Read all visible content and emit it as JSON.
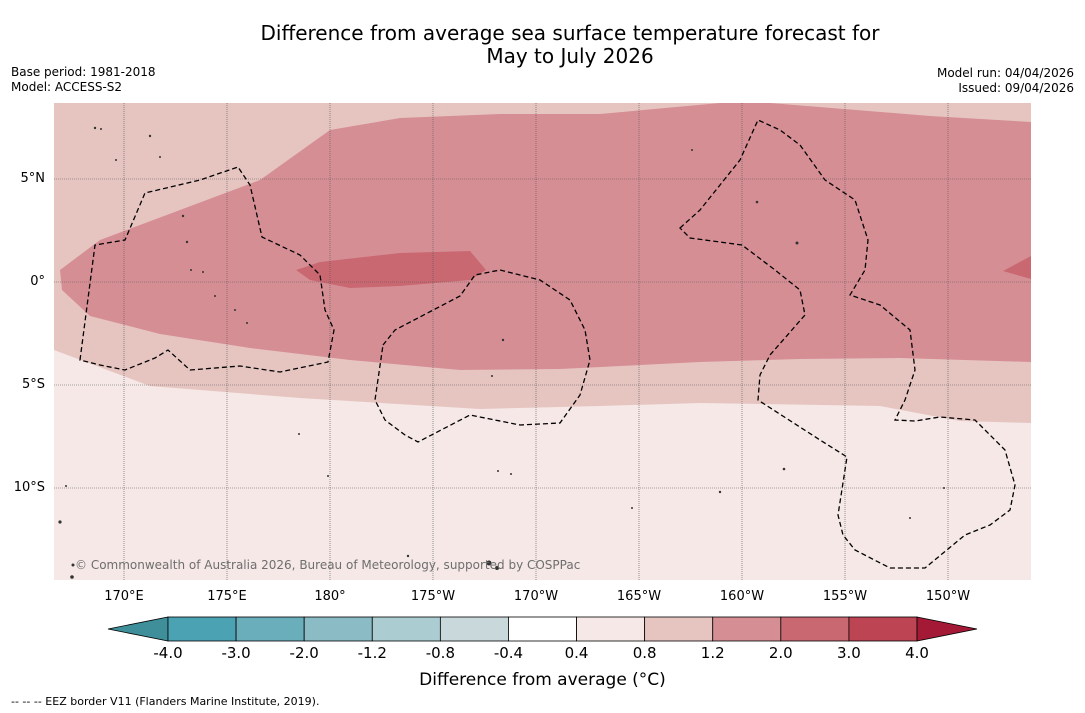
{
  "title_line1": "Difference from average sea surface temperature forecast for",
  "title_line2": "May to July 2026",
  "meta_left": {
    "base_period": "Base period: 1981-2018",
    "model": "Model: ACCESS-S2"
  },
  "meta_right": {
    "model_run": "Model run: 04/04/2026",
    "issued": "Issued: 09/04/2026"
  },
  "copyright": "© Commonwealth of Australia 2026, Bureau of Meteorology, supported by COSPPac",
  "lon_labels": [
    "170°E",
    "175°E",
    "180°",
    "175°W",
    "170°W",
    "165°W",
    "160°W",
    "155°W",
    "150°W"
  ],
  "lat_labels": [
    "5°N",
    "0°",
    "5°S",
    "10°S"
  ],
  "colorbar": {
    "title": "Difference from average (°C)",
    "ticks": [
      "-4.0",
      "-3.0",
      "-2.0",
      "-1.2",
      "-0.8",
      "-0.4",
      "0.4",
      "0.8",
      "1.2",
      "2.0",
      "3.0",
      "4.0"
    ],
    "colors": [
      "#3e8f9a",
      "#4ba2b2",
      "#6aaebb",
      "#8bbbc5",
      "#abcdd1",
      "#c9d8db",
      "#ffffff",
      "#f5e8e6",
      "#e6c5c1",
      "#d68e95",
      "#c96871",
      "#bd4453",
      "#a31936"
    ]
  },
  "footer": "--  --  -- EEZ border V11 (Flanders Marine Institute, 2019)."
}
